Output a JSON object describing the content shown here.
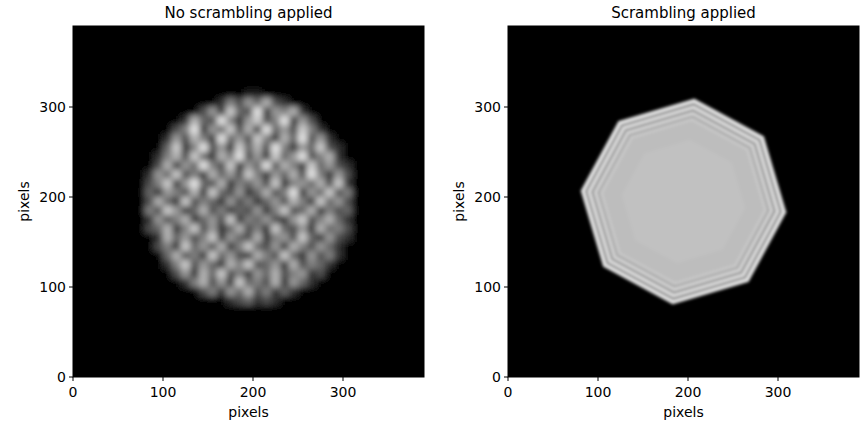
{
  "chart_data": [
    {
      "type": "heatmap",
      "title": "No scrambling applied",
      "xlabel": "pixels",
      "ylabel": "pixels",
      "xlim": [
        0,
        390
      ],
      "ylim": [
        0,
        390
      ],
      "xticks": [
        0,
        100,
        200,
        300
      ],
      "yticks": [
        0,
        100,
        200,
        300
      ],
      "color": "#ffffff",
      "cells_extent": [
        70,
        330,
        70,
        330
      ],
      "cells": [
        [
          0,
          0,
          0,
          0,
          0,
          0,
          0,
          0,
          0,
          0,
          0,
          0,
          0,
          0,
          0,
          0,
          0,
          0,
          0,
          0,
          0,
          0,
          0,
          0,
          0,
          0
        ],
        [
          0,
          0,
          0,
          0,
          0,
          0,
          0,
          0,
          0,
          0,
          0,
          0,
          0.1,
          0.1,
          0,
          0,
          0,
          0,
          0,
          0,
          0,
          0,
          0,
          0,
          0,
          0
        ],
        [
          0,
          0,
          0,
          0,
          0,
          0,
          0,
          0,
          0,
          0.2,
          0.5,
          0.3,
          0.6,
          0.4,
          0.7,
          0.3,
          0.2,
          0,
          0,
          0,
          0,
          0,
          0,
          0,
          0,
          0
        ],
        [
          0,
          0,
          0,
          0,
          0,
          0,
          0,
          0.3,
          0.6,
          0.2,
          0.8,
          0.4,
          0.3,
          0.9,
          0.2,
          0.6,
          0.5,
          0.7,
          0.2,
          0,
          0,
          0,
          0,
          0,
          0,
          0
        ],
        [
          0,
          0,
          0,
          0,
          0,
          0.2,
          0.7,
          0.4,
          0.3,
          0.9,
          0.5,
          0.2,
          0.6,
          0.8,
          0.3,
          0.5,
          0.9,
          0.2,
          0.6,
          0.3,
          0,
          0,
          0,
          0,
          0,
          0
        ],
        [
          0,
          0,
          0,
          0,
          0.3,
          0.5,
          0.9,
          0.2,
          0.6,
          0.4,
          0.8,
          0.3,
          0.7,
          0.2,
          0.9,
          0.4,
          0.6,
          0.3,
          0.8,
          0.5,
          0.2,
          0,
          0,
          0,
          0,
          0
        ],
        [
          0,
          0,
          0,
          0.2,
          0.6,
          0.3,
          0.7,
          0.5,
          0.2,
          0.9,
          0.4,
          0.6,
          0.3,
          0.8,
          0.5,
          0.2,
          0.7,
          0.4,
          0.9,
          0.3,
          0.6,
          0.2,
          0,
          0,
          0,
          0
        ],
        [
          0,
          0,
          0,
          0.4,
          0.8,
          0.2,
          0.5,
          0.9,
          0.3,
          0.6,
          0.2,
          0.8,
          0.4,
          0.7,
          0.3,
          0.9,
          0.5,
          0.2,
          0.6,
          0.4,
          0.8,
          0.3,
          0.2,
          0,
          0,
          0
        ],
        [
          0,
          0,
          0.2,
          0.5,
          0.7,
          0.3,
          0.8,
          0.4,
          0.2,
          0.7,
          0.5,
          0.9,
          0.3,
          0.6,
          0.2,
          0.8,
          0.4,
          0.6,
          0.9,
          0.3,
          0.5,
          0.7,
          0.2,
          0,
          0,
          0
        ],
        [
          0,
          0,
          0.3,
          0.7,
          0.2,
          0.6,
          0.4,
          0.9,
          0.5,
          0.3,
          0.8,
          0.2,
          0.6,
          0.4,
          0.9,
          0.3,
          0.7,
          0.5,
          0.2,
          0.8,
          0.4,
          0.6,
          0.3,
          0.2,
          0,
          0
        ],
        [
          0,
          0.2,
          0.6,
          0.4,
          0.8,
          0.3,
          0.5,
          0.2,
          0.7,
          0.4,
          0.6,
          0.3,
          0.8,
          0.5,
          0.2,
          0.6,
          0.4,
          0.7,
          0.3,
          0.9,
          0.5,
          0.2,
          0.6,
          0.3,
          0,
          0
        ],
        [
          0,
          0.3,
          0.5,
          0.8,
          0.2,
          0.6,
          0.9,
          0.4,
          0.3,
          0.7,
          0.2,
          0.5,
          0.4,
          0.6,
          0.3,
          0.8,
          0.2,
          0.5,
          0.6,
          0.4,
          0.7,
          0.3,
          0.8,
          0.2,
          0,
          0
        ],
        [
          0,
          0.4,
          0.2,
          0.6,
          0.5,
          0.3,
          0.7,
          0.2,
          0.8,
          0.4,
          0.3,
          0.6,
          0.2,
          0.4,
          0.7,
          0.3,
          0.5,
          0.9,
          0.2,
          0.6,
          0.4,
          0.8,
          0.3,
          0.5,
          0,
          0
        ],
        [
          0,
          0.3,
          0.7,
          0.4,
          0.2,
          0.8,
          0.3,
          0.5,
          0.4,
          0.2,
          0.6,
          0.3,
          0.5,
          0.2,
          0.4,
          0.6,
          0.3,
          0.7,
          0.5,
          0.2,
          0.8,
          0.4,
          0.6,
          0.3,
          0,
          0
        ],
        [
          0,
          0.5,
          0.3,
          0.8,
          0.6,
          0.2,
          0.4,
          0.7,
          0.3,
          0.5,
          0.2,
          0.4,
          0.3,
          0.6,
          0.2,
          0.5,
          0.8,
          0.3,
          0.4,
          0.7,
          0.2,
          0.5,
          0.3,
          0.4,
          0,
          0
        ],
        [
          0,
          0.2,
          0.6,
          0.3,
          0.5,
          0.7,
          0.2,
          0.4,
          0.6,
          0.3,
          0.8,
          0.2,
          0.5,
          0.4,
          0.6,
          0.3,
          0.2,
          0.6,
          0.8,
          0.3,
          0.5,
          0.7,
          0.4,
          0.2,
          0,
          0
        ],
        [
          0,
          0.3,
          0.4,
          0.7,
          0.2,
          0.5,
          0.8,
          0.3,
          0.6,
          0.2,
          0.4,
          0.7,
          0.3,
          0.5,
          0.2,
          0.8,
          0.4,
          0.3,
          0.6,
          0.2,
          0.7,
          0.4,
          0.5,
          0.3,
          0,
          0
        ],
        [
          0,
          0,
          0.2,
          0.7,
          0.4,
          0.6,
          0.3,
          0.5,
          0.8,
          0.2,
          0.6,
          0.4,
          0.3,
          0.7,
          0.2,
          0.5,
          0.6,
          0.3,
          0.8,
          0.4,
          0.2,
          0.6,
          0.3,
          0.2,
          0,
          0
        ],
        [
          0,
          0,
          0.3,
          0.5,
          0.2,
          0.8,
          0.4,
          0.6,
          0.3,
          0.7,
          0.2,
          0.5,
          0.8,
          0.4,
          0.3,
          0.6,
          0.2,
          0.7,
          0.5,
          0.3,
          0.6,
          0.4,
          0.2,
          0,
          0,
          0
        ],
        [
          0,
          0,
          0,
          0.4,
          0.7,
          0.3,
          0.5,
          0.2,
          0.8,
          0.4,
          0.6,
          0.3,
          0.2,
          0.7,
          0.5,
          0.3,
          0.8,
          0.4,
          0.2,
          0.6,
          0.3,
          0.5,
          0.2,
          0,
          0,
          0
        ],
        [
          0,
          0,
          0,
          0.2,
          0.5,
          0.8,
          0.3,
          0.6,
          0.4,
          0.2,
          0.7,
          0.5,
          0.8,
          0.3,
          0.4,
          0.6,
          0.2,
          0.7,
          0.3,
          0.5,
          0.4,
          0.2,
          0,
          0,
          0,
          0
        ],
        [
          0,
          0,
          0,
          0,
          0.3,
          0.6,
          0.2,
          0.7,
          0.4,
          0.8,
          0.3,
          0.5,
          0.2,
          0.6,
          0.4,
          0.7,
          0.3,
          0.5,
          0.6,
          0.2,
          0.3,
          0,
          0,
          0,
          0,
          0
        ],
        [
          0,
          0,
          0,
          0,
          0,
          0.2,
          0.5,
          0.7,
          0.3,
          0.6,
          0.2,
          0.8,
          0.4,
          0.5,
          0.3,
          0.7,
          0.2,
          0.6,
          0.4,
          0.2,
          0,
          0,
          0,
          0,
          0,
          0
        ],
        [
          0,
          0,
          0,
          0,
          0,
          0,
          0,
          0.3,
          0.5,
          0.2,
          0.6,
          0.4,
          0.7,
          0.3,
          0.5,
          0.2,
          0.4,
          0.2,
          0,
          0,
          0,
          0,
          0,
          0,
          0,
          0
        ],
        [
          0,
          0,
          0,
          0,
          0,
          0,
          0,
          0,
          0,
          0,
          0.2,
          0.3,
          0.4,
          0.2,
          0.3,
          0.2,
          0,
          0,
          0,
          0,
          0,
          0,
          0,
          0,
          0,
          0
        ],
        [
          0,
          0,
          0,
          0,
          0,
          0,
          0,
          0,
          0,
          0,
          0,
          0,
          0,
          0,
          0,
          0,
          0,
          0,
          0,
          0,
          0,
          0,
          0,
          0,
          0,
          0
        ]
      ]
    },
    {
      "type": "shape",
      "title": "Scrambling applied",
      "xlabel": "pixels",
      "ylabel": "pixels",
      "xlim": [
        0,
        390
      ],
      "ylim": [
        0,
        390
      ],
      "xticks": [
        0,
        100,
        200,
        300
      ],
      "yticks": [
        0,
        100,
        200,
        300
      ],
      "color": "#bdbdbd",
      "vertices": {
        "x": [
          80.6,
          122.6,
          207.0,
          284.4,
          309.4,
          267.4,
          183.0,
          105.6
        ],
        "y": [
          207.0,
          284.4,
          309.4,
          267.4,
          183.0,
          105.6,
          80.6,
          122.6
        ]
      }
    }
  ]
}
